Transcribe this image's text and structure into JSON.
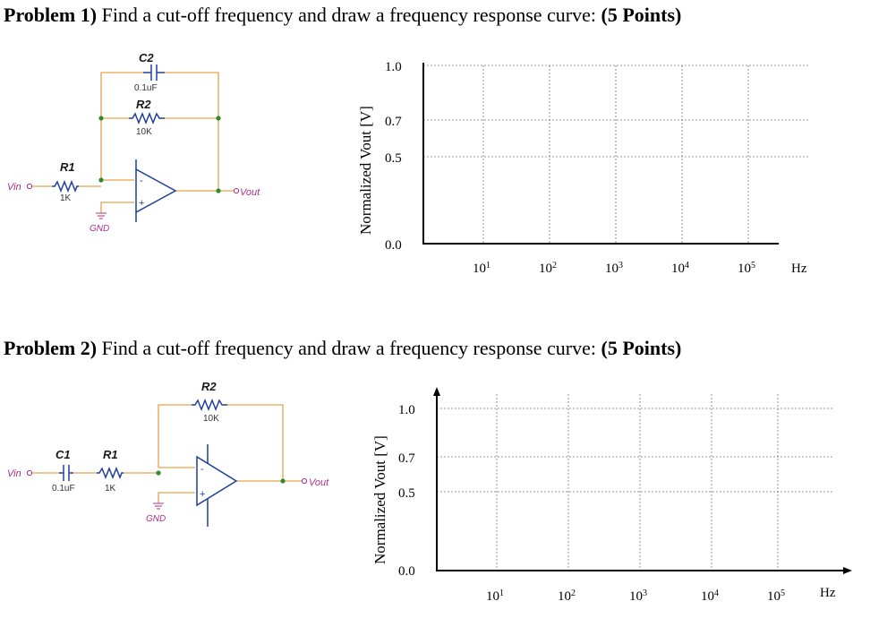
{
  "problem1": {
    "number": "Problem 1)",
    "text": " Find a cut-off frequency and draw a frequency response curve: ",
    "points": "(5 Points)",
    "circuit": {
      "capacitor_label": "C2",
      "capacitor_value": "0.1uF",
      "feedback_resistor_label": "R2",
      "feedback_resistor_value": "10K",
      "input_resistor_label": "R1",
      "input_resistor_value": "1K",
      "input_port": "Vin",
      "output_port": "Vout",
      "ground": "GND",
      "minus": "-",
      "plus": "+"
    },
    "graph": {
      "ylabel": "Normalized Vout [V]",
      "yticks": [
        "1.0",
        "0.7",
        "0.5",
        "0.0"
      ],
      "xticks": [
        {
          "base": "10",
          "exp": "1"
        },
        {
          "base": "10",
          "exp": "2"
        },
        {
          "base": "10",
          "exp": "3"
        },
        {
          "base": "10",
          "exp": "4"
        },
        {
          "base": "10",
          "exp": "5"
        }
      ],
      "xunit": "Hz"
    }
  },
  "problem2": {
    "number": "Problem 2)",
    "text": " Find a cut-off frequency and draw a frequency response curve: ",
    "points": "(5 Points)",
    "circuit": {
      "feedback_resistor_label": "R2",
      "feedback_resistor_value": "10K",
      "capacitor_label": "C1",
      "capacitor_value": "0.1uF",
      "input_resistor_label": "R1",
      "input_resistor_value": "1K",
      "input_port": "Vin",
      "output_port": "Vout",
      "ground": "GND",
      "minus": "-",
      "plus": "+"
    },
    "graph": {
      "ylabel": "Normalized Vout [V]",
      "yticks": [
        "1.0",
        "0.7",
        "0.5",
        "0.0"
      ],
      "xticks": [
        {
          "base": "10",
          "exp": "1"
        },
        {
          "base": "10",
          "exp": "2"
        },
        {
          "base": "10",
          "exp": "3"
        },
        {
          "base": "10",
          "exp": "4"
        },
        {
          "base": "10",
          "exp": "5"
        }
      ],
      "xunit": "Hz"
    }
  }
}
